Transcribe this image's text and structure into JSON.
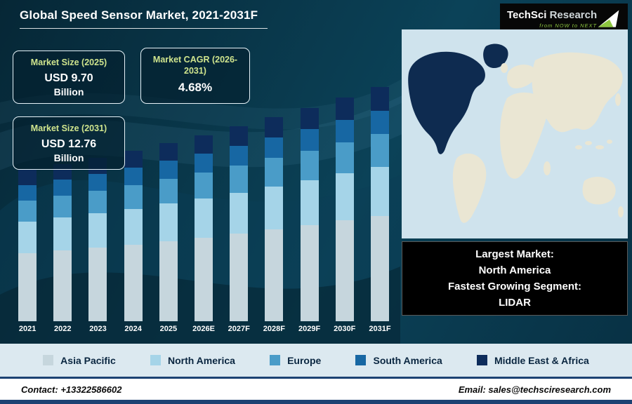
{
  "header": {
    "title": "Global Speed Sensor Market, 2021-2031F",
    "logo": {
      "brand_primary": "TechSci",
      "brand_secondary": "Research",
      "tagline": "from NOW to NEXT"
    }
  },
  "stats": [
    {
      "label": "Market Size (2025)",
      "value": "USD 9.70",
      "unit": "Billion"
    },
    {
      "label": "Market CAGR (2026-2031)",
      "value": "4.68%"
    },
    {
      "label": "Market Size (2031)",
      "value": "USD 12.76",
      "unit": "Billion"
    }
  ],
  "callout": {
    "lines": [
      "Largest Market:",
      "North America",
      "Fastest Growing Segment:",
      "LIDAR"
    ]
  },
  "map": {
    "highlighted_region": "North America"
  },
  "chart_data": {
    "type": "bar",
    "stacked": true,
    "unit": "USD Billion",
    "categories": [
      "2021",
      "2022",
      "2023",
      "2024",
      "2025",
      "2026E",
      "2027F",
      "2028F",
      "2029F",
      "2030F",
      "2031F"
    ],
    "series": [
      {
        "name": "Asia Pacific",
        "color": "#c6d6dd",
        "values": [
          3.71,
          3.85,
          4.01,
          4.18,
          4.37,
          4.57,
          4.78,
          5.0,
          5.24,
          5.49,
          5.74
        ]
      },
      {
        "name": "North America",
        "color": "#a5d4e8",
        "values": [
          1.73,
          1.8,
          1.87,
          1.95,
          2.04,
          2.13,
          2.23,
          2.34,
          2.44,
          2.56,
          2.68
        ]
      },
      {
        "name": "Europe",
        "color": "#4a9cc8",
        "values": [
          1.16,
          1.2,
          1.25,
          1.3,
          1.36,
          1.42,
          1.49,
          1.56,
          1.63,
          1.71,
          1.79
        ]
      },
      {
        "name": "South America",
        "color": "#1767a3",
        "values": [
          0.83,
          0.86,
          0.89,
          0.93,
          0.97,
          1.02,
          1.06,
          1.11,
          1.16,
          1.22,
          1.28
        ]
      },
      {
        "name": "Middle East & Africa",
        "color": "#0d2c5b",
        "values": [
          0.82,
          0.84,
          0.88,
          0.92,
          0.96,
          1.01,
          1.07,
          1.11,
          1.17,
          1.21,
          1.27
        ]
      }
    ],
    "totals": [
      8.25,
      8.55,
      8.9,
      9.28,
      9.7,
      10.15,
      10.63,
      11.12,
      11.64,
      12.19,
      12.76
    ],
    "ylim": [
      0,
      13
    ],
    "grid": false,
    "legend_position": "bottom"
  },
  "footer": {
    "contact": "Contact: +13322586602",
    "email": "Email: sales@techsciresearch.com"
  },
  "colors": {
    "bg_top": "#062736",
    "bg_mid": "#0b4258",
    "accent_green": "#8dc63f",
    "label_green": "#cfe48d",
    "card_bg": "rgba(4,31,45,0.62)",
    "map_ocean": "#cfe3ed",
    "map_land": "#eae6d3",
    "map_highlight": "#0e2b50",
    "callout_bg": "#000000",
    "legend_strip_bg": "#dce9f0",
    "footer_bar": "#1c4273"
  }
}
